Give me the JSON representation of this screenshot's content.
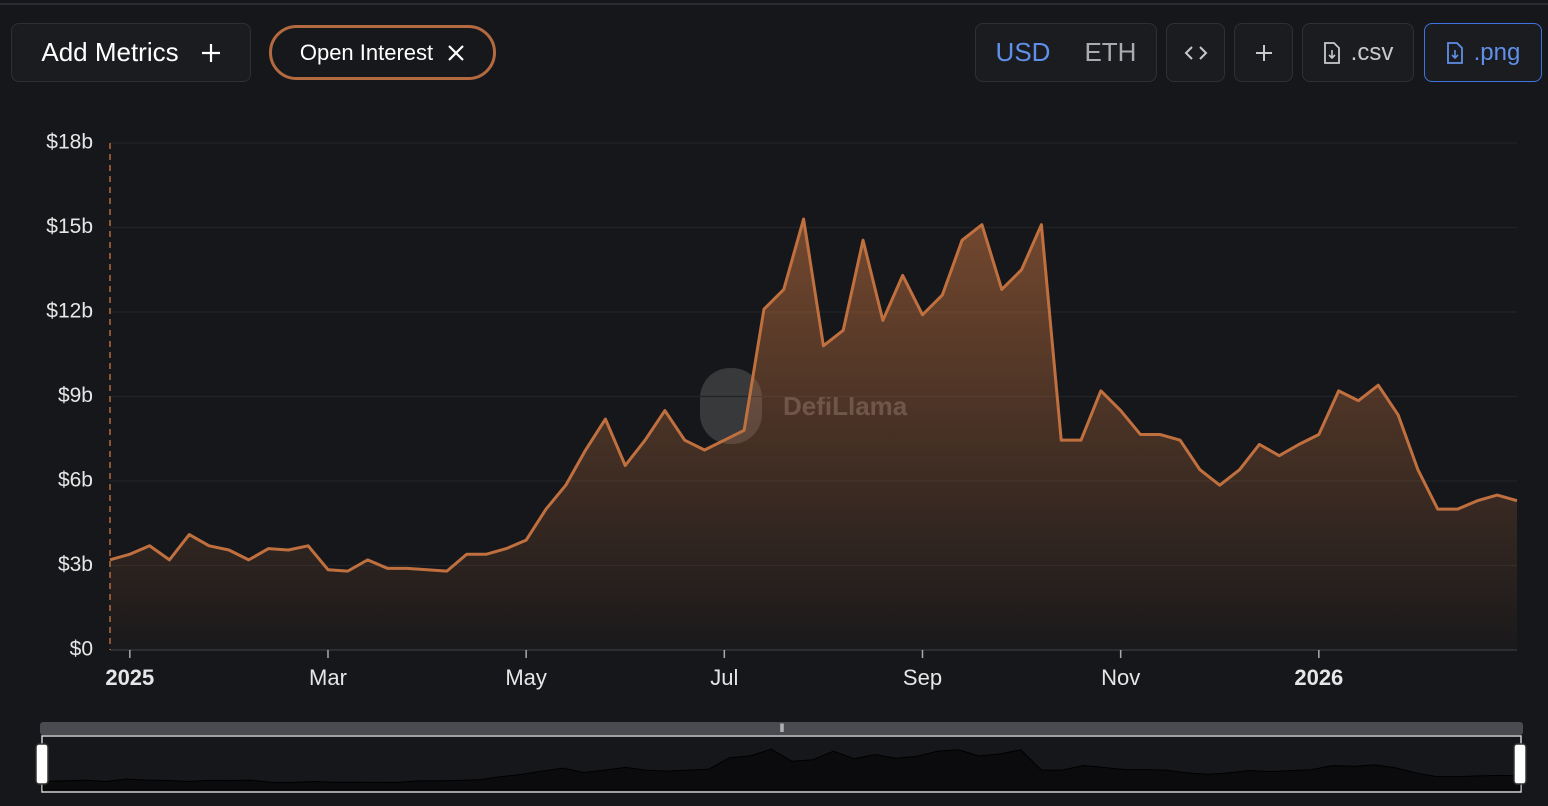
{
  "toolbar": {
    "add_metrics": "Add Metrics",
    "currencies": [
      "USD",
      "ETH"
    ],
    "csv": ".csv",
    "png": ".png"
  },
  "chart_data": {
    "type": "area",
    "watermark": "DefiLlama",
    "categories": [
      null,
      "2025",
      null,
      null,
      null,
      null,
      null,
      null,
      null,
      null,
      null,
      "Mar",
      null,
      null,
      null,
      null,
      null,
      null,
      null,
      null,
      null,
      "May",
      null,
      null,
      null,
      null,
      null,
      null,
      null,
      null,
      null,
      "Jul",
      null,
      null,
      null,
      null,
      null,
      null,
      null,
      null,
      null,
      "Sep",
      null,
      null,
      null,
      null,
      null,
      null,
      null,
      null,
      null,
      "Nov",
      null,
      null,
      null,
      null,
      null,
      null,
      null,
      null,
      null,
      "2026",
      null,
      null,
      null,
      null,
      null,
      null,
      null,
      null,
      null,
      null
    ],
    "series": [
      {
        "name": "Open Interest",
        "color": "#c0703f",
        "values": [
          3.2,
          3.4,
          3.7,
          3.2,
          4.1,
          3.7,
          3.55,
          3.2,
          3.6,
          3.55,
          3.7,
          2.85,
          2.8,
          3.2,
          2.9,
          2.9,
          2.85,
          2.8,
          3.4,
          3.4,
          3.6,
          3.9,
          5.0,
          5.85,
          7.1,
          8.2,
          6.55,
          7.45,
          8.5,
          7.45,
          7.1,
          7.45,
          7.8,
          12.1,
          12.8,
          15.3,
          10.8,
          11.35,
          14.55,
          11.7,
          13.3,
          11.9,
          12.6,
          14.55,
          15.1,
          12.8,
          13.5,
          15.1,
          7.45,
          7.45,
          9.2,
          8.5,
          7.65,
          7.65,
          7.45,
          6.4,
          5.85,
          6.4,
          7.3,
          6.9,
          7.3,
          7.65,
          9.2,
          8.85,
          9.4,
          8.35,
          6.4,
          5.0,
          5.0,
          5.3,
          5.5,
          5.3
        ]
      }
    ],
    "ylim": [
      0,
      18
    ],
    "yticks": [
      {
        "value": 0,
        "label": "$0"
      },
      {
        "value": 3,
        "label": "$3b"
      },
      {
        "value": 6,
        "label": "$6b"
      },
      {
        "value": 9,
        "label": "$9b"
      },
      {
        "value": 12,
        "label": "$12b"
      },
      {
        "value": 15,
        "label": "$15b"
      },
      {
        "value": 18,
        "label": "$18b"
      }
    ],
    "grid": true
  }
}
